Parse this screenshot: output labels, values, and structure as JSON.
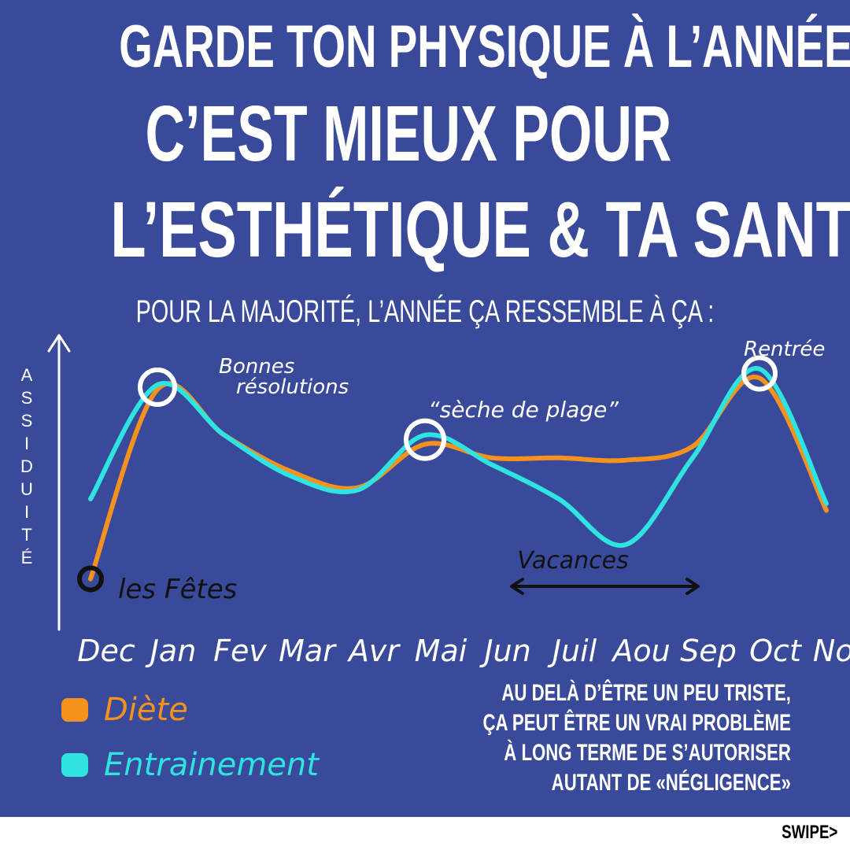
{
  "header": {
    "line1": "Garde ton physique à l’année",
    "line2": "C’est mieux pour",
    "line3": "l’esthétique & ta santé",
    "subtitle": "Pour la majorité, l’année ça ressemble à ça :"
  },
  "chart_data": {
    "type": "line",
    "title": "",
    "ylabel": "ASSIDUITÉ",
    "xlabel": "",
    "categories": [
      "Dec",
      "Jan",
      "Fev",
      "Mar",
      "Avr",
      "Mai",
      "Jun",
      "Juil",
      "Aou",
      "Sep",
      "Oct",
      "Nov"
    ],
    "ylim": [
      0,
      100
    ],
    "grid": false,
    "legend_placement": "bottom-left",
    "series": [
      {
        "name": "Diète",
        "color": "#f5921e",
        "values": [
          5,
          88,
          68,
          52,
          45,
          64,
          58,
          58,
          57,
          63,
          93,
          35
        ]
      },
      {
        "name": "Entrainement",
        "color": "#2fe3e0",
        "values": [
          40,
          90,
          68,
          50,
          44,
          68,
          55,
          40,
          20,
          58,
          97,
          38
        ]
      }
    ],
    "annotations": [
      {
        "text": "les Fêtes",
        "month": "Dec"
      },
      {
        "text": "Bonnes",
        "month": "Jan"
      },
      {
        "text": "résolutions",
        "month": "Jan"
      },
      {
        "text": "“sèche de plage”",
        "month": "Mai"
      },
      {
        "text": "Rentrée",
        "month": "Oct"
      },
      {
        "text": "Vacances",
        "month": "Aou"
      }
    ]
  },
  "note": {
    "line1": "Au delà d’être un peu triste,",
    "line2": "ça peut être un vrai problème",
    "line3": "à long terme de s’autoriser",
    "line4": "autant de «négligence»"
  },
  "footer": {
    "swipe": "SWIPE>"
  },
  "colors": {
    "background": "#3a4a9b",
    "diet": "#f5921e",
    "training": "#2fe3e0",
    "text": "#ffffff"
  }
}
